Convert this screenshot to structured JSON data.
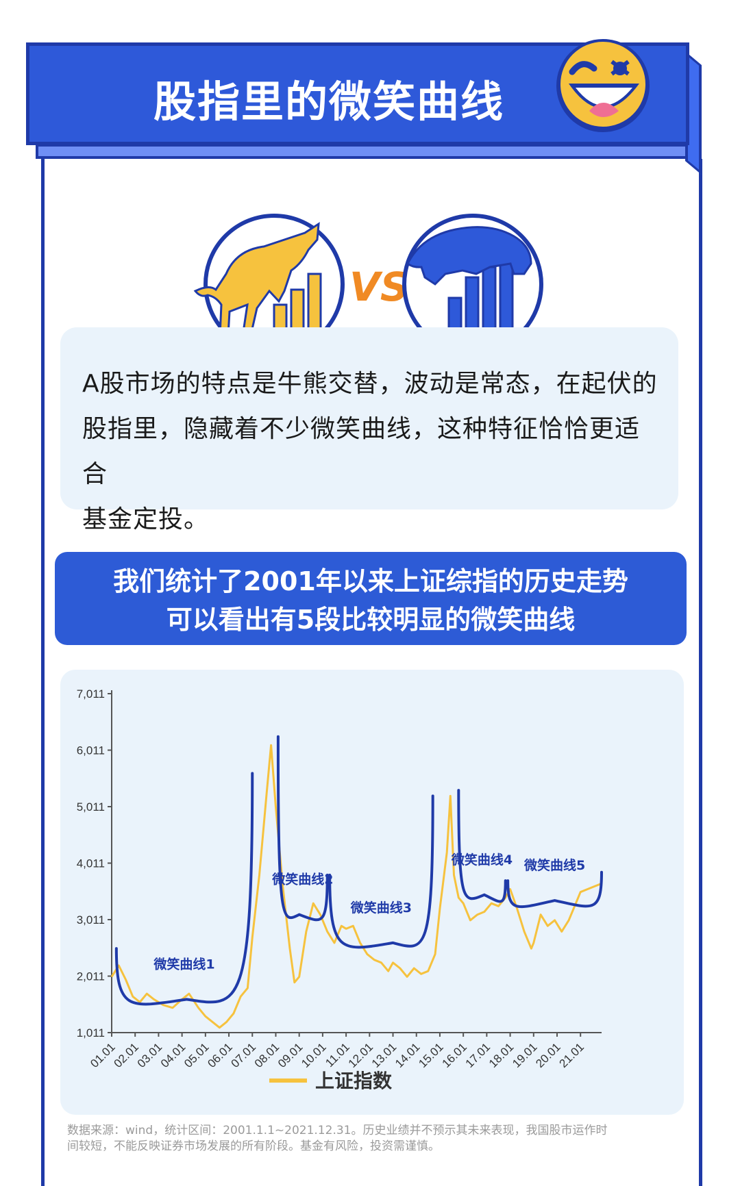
{
  "banner": {
    "title": "股指里的微笑曲线"
  },
  "intro": {
    "lines": [
      "A股市场的特点是牛熊交替，波动是常态，在起伏的",
      "股指里，隐藏着不少微笑曲线，这种特征恰恰更适合",
      "基金定投。"
    ]
  },
  "stat": {
    "line1": "我们统计了2001年以来上证综指的历史走势",
    "line2": "可以看出有5段比较明显的微笑曲线"
  },
  "vs": {
    "text": "VS"
  },
  "colors": {
    "primary": "#2e59d9",
    "dark": "#1f3aa8",
    "accent": "#f6c23e",
    "orange": "#f08a24",
    "panel": "#eaf3fb"
  },
  "chart_data": {
    "type": "line",
    "title": "",
    "ylim": [
      1011,
      7011
    ],
    "yticks": [
      "1,011",
      "2,011",
      "3,011",
      "4,011",
      "5,011",
      "6,011",
      "7,011"
    ],
    "categories": [
      "01.01",
      "02.01",
      "03.01",
      "04.01",
      "05.01",
      "06.01",
      "07.01",
      "08.01",
      "09.01",
      "10.01",
      "11.01",
      "12.01",
      "13.01",
      "14.01",
      "15.01",
      "16.01",
      "17.01",
      "18.01",
      "19.01",
      "20.01",
      "21.01"
    ],
    "series": [
      {
        "name": "上证指数",
        "color": "#f6c23e",
        "x": [
          2001.0,
          2001.3,
          2001.6,
          2001.9,
          2002.2,
          2002.5,
          2002.8,
          2003.2,
          2003.6,
          2004.0,
          2004.3,
          2004.7,
          2005.0,
          2005.3,
          2005.6,
          2005.9,
          2006.2,
          2006.5,
          2006.8,
          2007.0,
          2007.3,
          2007.6,
          2007.8,
          2008.0,
          2008.3,
          2008.6,
          2008.8,
          2009.0,
          2009.3,
          2009.6,
          2009.9,
          2010.2,
          2010.5,
          2010.8,
          2011.0,
          2011.3,
          2011.6,
          2011.9,
          2012.2,
          2012.5,
          2012.8,
          2013.0,
          2013.3,
          2013.6,
          2013.9,
          2014.2,
          2014.5,
          2014.8,
          2015.0,
          2015.3,
          2015.45,
          2015.6,
          2015.8,
          2016.0,
          2016.3,
          2016.6,
          2016.9,
          2017.2,
          2017.5,
          2017.8,
          2018.0,
          2018.3,
          2018.6,
          2018.9,
          2019.0,
          2019.3,
          2019.6,
          2019.9,
          2020.2,
          2020.5,
          2020.8,
          2021.0,
          2021.3,
          2021.6,
          2021.9
        ],
        "values": [
          2000,
          2200,
          1950,
          1650,
          1550,
          1700,
          1600,
          1500,
          1450,
          1600,
          1700,
          1450,
          1300,
          1200,
          1100,
          1200,
          1350,
          1650,
          1800,
          2700,
          3800,
          5200,
          6100,
          5000,
          3600,
          2500,
          1900,
          2000,
          2800,
          3300,
          3100,
          2800,
          2600,
          2900,
          2850,
          2900,
          2600,
          2400,
          2300,
          2250,
          2100,
          2250,
          2150,
          2000,
          2150,
          2050,
          2100,
          2400,
          3200,
          4200,
          5200,
          3800,
          3400,
          3300,
          3000,
          3100,
          3150,
          3300,
          3250,
          3400,
          3550,
          3200,
          2800,
          2500,
          2600,
          3100,
          2900,
          3000,
          2800,
          3000,
          3300,
          3500,
          3550,
          3600,
          3650
        ]
      }
    ],
    "smile_curves": [
      {
        "label": "微笑曲线1",
        "start": [
          2001.2,
          2500
        ],
        "end": [
          2007.0,
          5600
        ],
        "bottom": [
          2004.2,
          1600
        ]
      },
      {
        "label": "微笑曲线2",
        "start": [
          2008.1,
          6250
        ],
        "end": [
          2010.2,
          3800
        ],
        "bottom": [
          2009.0,
          3100
        ]
      },
      {
        "label": "微笑曲线3",
        "start": [
          2010.3,
          3800
        ],
        "end": [
          2014.7,
          5200
        ],
        "bottom": [
          2013.0,
          2600
        ]
      },
      {
        "label": "微笑曲线4",
        "start": [
          2015.8,
          5300
        ],
        "end": [
          2017.8,
          3700
        ],
        "bottom": [
          2016.9,
          3450
        ]
      },
      {
        "label": "微笑曲线5",
        "start": [
          2017.9,
          3700
        ],
        "end": [
          2021.9,
          3850
        ],
        "bottom": [
          2019.9,
          3350
        ]
      }
    ],
    "legend": "bottom",
    "grid": false
  },
  "footnote": {
    "line1": "数据来源：wind，统计区间：2001.1.1~2021.12.31。历史业绩并不预示其未来表现，我国股市运作时",
    "line2": "间较短，不能反映证券市场发展的所有阶段。基金有风险，投资需谨慎。"
  }
}
